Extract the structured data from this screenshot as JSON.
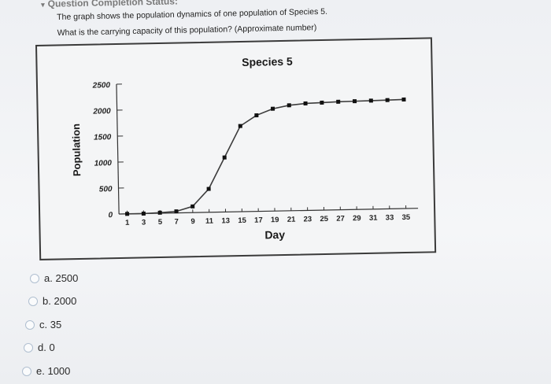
{
  "header": {
    "status_label": "Question Completion Status:"
  },
  "question": {
    "line1": "The graph shows the population dynamics of one population of Species 5.",
    "line2": "What is the carrying capacity of this population? (Approximate number)"
  },
  "chart_data": {
    "type": "line",
    "title": "Species 5",
    "xlabel": "Day",
    "ylabel": "Population",
    "x_ticks": [
      1,
      3,
      5,
      7,
      9,
      11,
      13,
      15,
      17,
      19,
      21,
      23,
      25,
      27,
      29,
      31,
      33,
      35
    ],
    "y_ticks": [
      0,
      500,
      1000,
      1500,
      2000,
      2500
    ],
    "xlim": [
      0,
      36
    ],
    "ylim": [
      0,
      2500
    ],
    "x": [
      1,
      3,
      5,
      7,
      9,
      11,
      13,
      15,
      17,
      19,
      21,
      23,
      25,
      27,
      29,
      31,
      33,
      35
    ],
    "values": [
      0,
      0,
      10,
      30,
      120,
      450,
      1050,
      1650,
      1850,
      1970,
      2030,
      2060,
      2070,
      2080,
      2085,
      2090,
      2095,
      2100
    ],
    "grid": false,
    "series_color": "#3c3c3c"
  },
  "answers": [
    {
      "letter": "a.",
      "text": "2500"
    },
    {
      "letter": "b.",
      "text": "2000"
    },
    {
      "letter": "c.",
      "text": "35"
    },
    {
      "letter": "d.",
      "text": "0"
    },
    {
      "letter": "e.",
      "text": "1000"
    }
  ]
}
